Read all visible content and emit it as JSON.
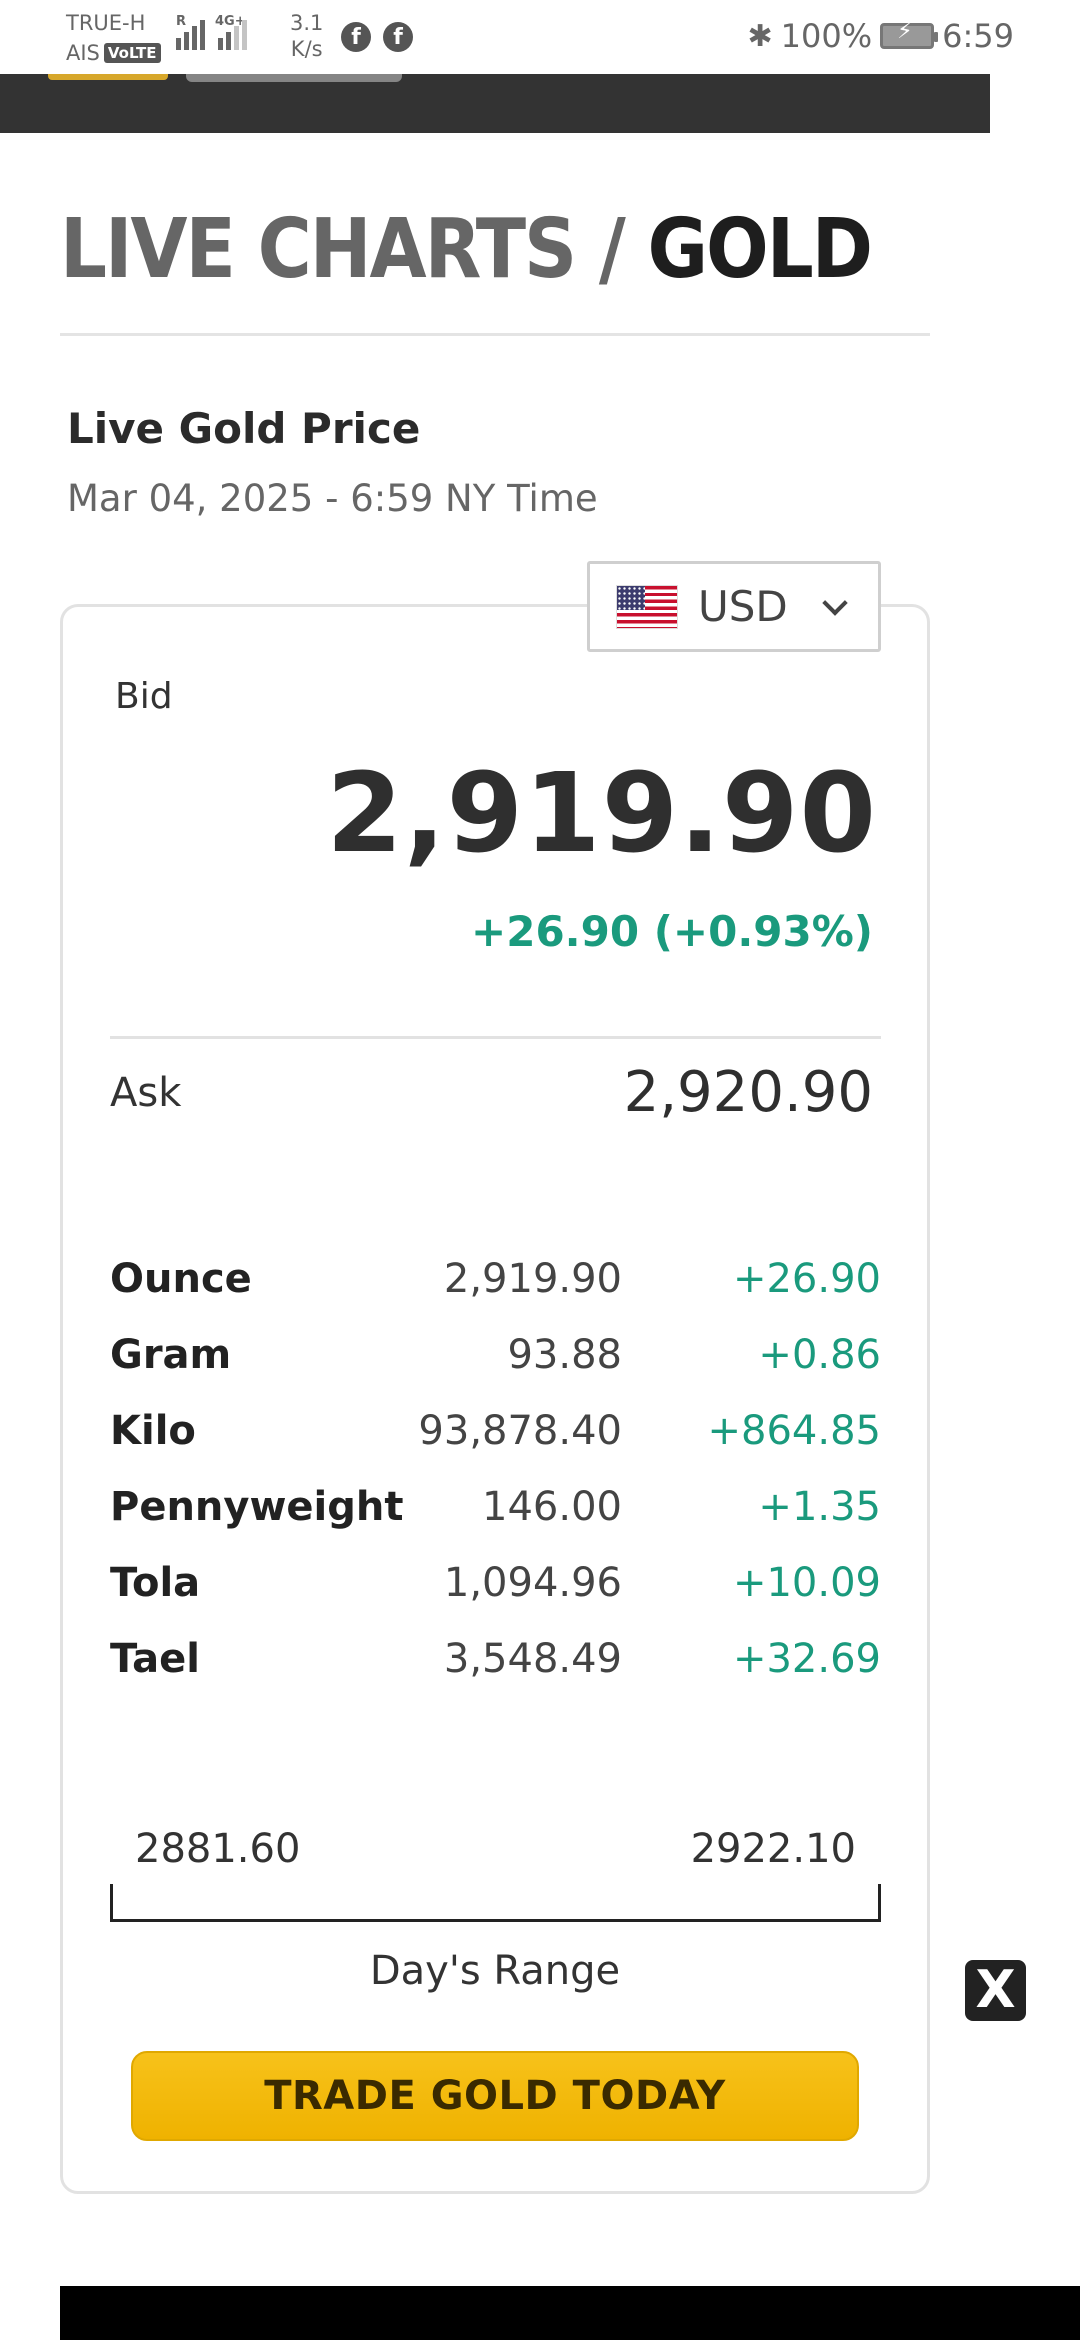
{
  "status_bar": {
    "carrier_line1": "TRUE-H",
    "carrier_line2": "AIS",
    "volte_badge": "VoLTE",
    "network_tag_1": "R",
    "network_tag_2": "4G+",
    "speed_value": "3.1",
    "speed_unit": "K/s",
    "battery_percent": "100%",
    "time": "6:59",
    "icons": [
      "signal-icon",
      "facebook-icon",
      "bluetooth-icon",
      "battery-icon"
    ]
  },
  "page": {
    "breadcrumb_parent": "LIVE CHARTS",
    "breadcrumb_separator": "/",
    "breadcrumb_current": "GOLD"
  },
  "price": {
    "heading": "Live Gold Price",
    "timestamp": "Mar 04, 2025 - 6:59 NY Time",
    "currency": "USD",
    "bid_label": "Bid",
    "bid_value": "2,919.90",
    "bid_change": "+26.90 (+0.93%)",
    "ask_label": "Ask",
    "ask_value": "2,920.90",
    "change_color": "#1a9a7d"
  },
  "units": [
    {
      "name": "Ounce",
      "price": "2,919.90",
      "change": "+26.90"
    },
    {
      "name": "Gram",
      "price": "93.88",
      "change": "+0.86"
    },
    {
      "name": "Kilo",
      "price": "93,878.40",
      "change": "+864.85"
    },
    {
      "name": "Pennyweight",
      "price": "146.00",
      "change": "+1.35"
    },
    {
      "name": "Tola",
      "price": "1,094.96",
      "change": "+10.09"
    },
    {
      "name": "Tael",
      "price": "3,548.49",
      "change": "+32.69"
    }
  ],
  "range": {
    "low": "2881.60",
    "high": "2922.10",
    "caption": "Day's Range"
  },
  "cta": {
    "label": "TRADE GOLD TODAY",
    "color": "#f7c21a"
  },
  "ad": {
    "close_label": "X"
  }
}
